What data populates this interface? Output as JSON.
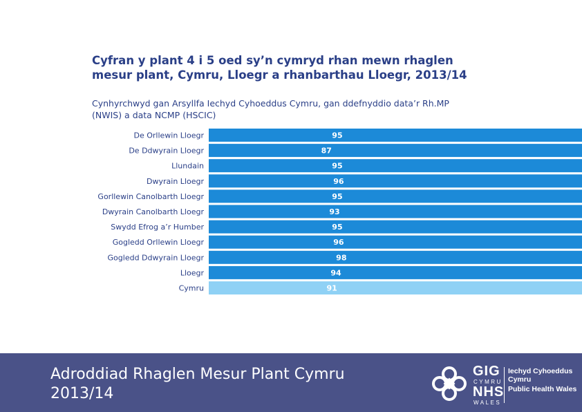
{
  "slide": {
    "title": "Cyfran y plant 4 i 5 oed sy’n cymryd rhan mewn rhaglen mesur plant, Cymru, Lloegr a rhanbarthau Lloegr, 2013/14",
    "subtitle": "Cynhyrchwyd gan Arsyllfa Iechyd Cyhoeddus Cymru, gan ddefnyddio data’r Rh.MP (NWIS) a data NCMP (HSCIC)"
  },
  "chart_data": {
    "type": "bar",
    "orientation": "horizontal",
    "categories": [
      "De Orllewin Lloegr",
      "De Ddwyrain Lloegr",
      "Llundain",
      "Dwyrain Lloegr",
      "Gorllewin Canolbarth Lloegr",
      "Dwyrain Canolbarth Lloegr",
      "Swydd Efrog a’r Humber",
      "Gogledd Orllewin Lloegr",
      "Gogledd Ddwyrain Lloegr",
      "Lloegr",
      "Cymru"
    ],
    "values": [
      95,
      87,
      95,
      96,
      95,
      93,
      95,
      96,
      98,
      94,
      91
    ],
    "data_labels": [
      "95",
      "87",
      "95",
      "96",
      "95",
      "93",
      "95",
      "96",
      "98",
      "94",
      "91"
    ],
    "colors": {
      "bar": "#1c8ad8",
      "highlight_bar": "#8fd1f5",
      "label": "#ffffff",
      "category_text": "#2a3f87"
    },
    "highlight_category": "Cymru",
    "grid": false,
    "legend": "none"
  },
  "footer": {
    "title": "Adroddiad Rhaglen Mesur Plant Cymru 2013/14",
    "background": "#4a5288"
  },
  "logo": {
    "gig": "GIG",
    "cymru": "CYMRU",
    "nhs": "NHS",
    "wales": "WALES",
    "org_cy": "Iechyd Cyhoeddus Cymru",
    "org_en": "Public Health Wales"
  }
}
